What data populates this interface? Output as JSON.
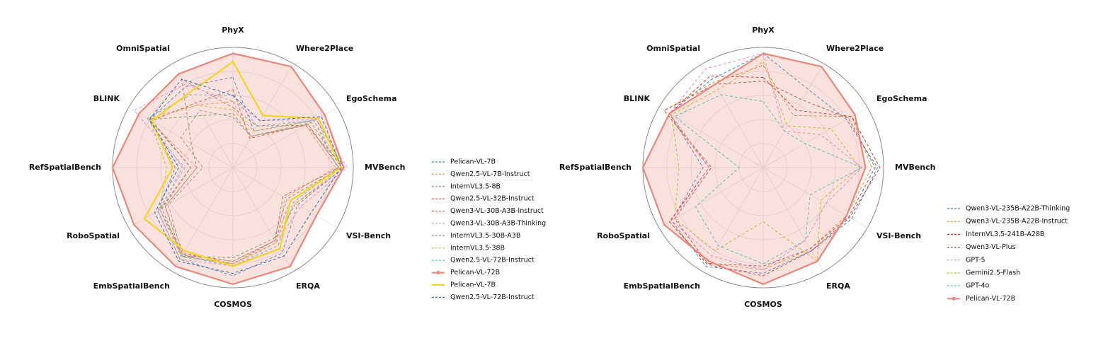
{
  "chart_data": [
    {
      "type": "radar",
      "categories": [
        "PhyX",
        "Where2Place",
        "EgoSchema",
        "MVBench",
        "VSI-Bench",
        "ERQA",
        "COSMOS",
        "EmbSpatialBench",
        "RoboSpatial",
        "RefSpatialBench",
        "BLINK",
        "OmniSpatial"
      ],
      "rlim": [
        0,
        1
      ],
      "rticks": [
        0.2,
        0.4,
        0.6,
        0.8,
        1.0
      ],
      "grid": true,
      "legend": "right",
      "series": [
        {
          "name": "Pelican-VL-7B",
          "color": "#3a8fc7",
          "style": "dashed",
          "values": [
            0.75,
            0.35,
            0.8,
            0.92,
            0.62,
            0.82,
            0.9,
            0.88,
            0.72,
            0.48,
            0.8,
            0.78
          ]
        },
        {
          "name": "Qwen2.5-VL-7B-Instruct",
          "color": "#f0a050",
          "style": "dashed",
          "values": [
            0.55,
            0.3,
            0.7,
            0.85,
            0.5,
            0.72,
            0.8,
            0.82,
            0.65,
            0.3,
            0.82,
            0.6
          ]
        },
        {
          "name": "InternVL3.5-8B",
          "color": "#5aab5a",
          "style": "dashed",
          "values": [
            0.45,
            0.3,
            0.75,
            0.9,
            0.52,
            0.68,
            0.75,
            0.85,
            0.68,
            0.35,
            0.8,
            0.5
          ]
        },
        {
          "name": "Qwen2.5-VL-32B-Instruct",
          "color": "#d9534f",
          "style": "dashed",
          "values": [
            0.65,
            0.28,
            0.72,
            0.88,
            0.48,
            0.7,
            0.78,
            0.83,
            0.7,
            0.35,
            0.78,
            0.62
          ]
        },
        {
          "name": "Qwen3-VL-30B-A3B-Instruct",
          "color": "#b07a6a",
          "style": "dashed",
          "values": [
            0.5,
            0.4,
            0.7,
            0.93,
            0.6,
            0.7,
            0.8,
            0.85,
            0.65,
            0.3,
            0.4,
            0.85
          ]
        },
        {
          "name": "Qwen3-VL-30B-A3B-Thinking",
          "color": "#e89ad6",
          "style": "dashed",
          "values": [
            0.55,
            0.45,
            0.8,
            0.95,
            0.65,
            0.72,
            0.82,
            0.88,
            0.72,
            0.4,
            0.95,
            0.8
          ]
        },
        {
          "name": "InternVL3.5-30B-A3B",
          "color": "#999999",
          "style": "dashed",
          "values": [
            0.42,
            0.3,
            0.72,
            0.88,
            0.55,
            0.7,
            0.78,
            0.84,
            0.62,
            0.25,
            0.5,
            0.55
          ]
        },
        {
          "name": "InternVL3.5-38B",
          "color": "#c8c840",
          "style": "dashed",
          "values": [
            0.48,
            0.35,
            0.78,
            0.9,
            0.6,
            0.72,
            0.8,
            0.86,
            0.7,
            0.55,
            0.8,
            0.6
          ]
        },
        {
          "name": "Qwen2.5-VL-72B-Instruct",
          "color": "#4fc3d9",
          "style": "dashed",
          "values": [
            0.6,
            0.4,
            0.78,
            0.87,
            0.58,
            0.75,
            0.82,
            0.85,
            0.7,
            0.42,
            0.82,
            0.7
          ]
        },
        {
          "name": "Pelican-VL-72B",
          "color": "#e8877a",
          "style": "solid",
          "fill": true,
          "marker": true,
          "values": [
            0.95,
            0.97,
            0.88,
            0.92,
            0.8,
            0.95,
            0.97,
            0.95,
            0.95,
            1.0,
            0.9,
            0.9
          ]
        },
        {
          "name": "Pelican-VL-7B",
          "color": "#f5d327",
          "style": "solid",
          "values": [
            0.88,
            0.5,
            0.82,
            0.9,
            0.55,
            0.78,
            0.82,
            0.8,
            0.85,
            0.5,
            0.78,
            0.72
          ]
        },
        {
          "name": "Qwen2.5-VL-72B-Instruct",
          "color": "#2b6cb0",
          "style": "dashed",
          "values": [
            0.6,
            0.45,
            0.85,
            0.9,
            0.75,
            0.85,
            0.88,
            0.9,
            0.75,
            0.45,
            0.8,
            0.85
          ]
        }
      ]
    },
    {
      "type": "radar",
      "categories": [
        "PhyX",
        "Where2Place",
        "EgoSchema",
        "MVBench",
        "VSI-Bench",
        "ERQA",
        "COSMOS",
        "EmbSpatialBench",
        "RoboSpatial",
        "RefSpatialBench",
        "BLINK",
        "OmniSpatial"
      ],
      "rlim": [
        0,
        1
      ],
      "rticks": [
        0.2,
        0.4,
        0.6,
        0.8,
        1.0
      ],
      "grid": true,
      "legend": "right",
      "series": [
        {
          "name": "Qwen3-VL-235B-A22B-Thinking",
          "color": "#3a7fc7",
          "style": "dashed",
          "values": [
            0.95,
            0.75,
            0.8,
            0.95,
            0.85,
            0.8,
            0.88,
            0.95,
            0.88,
            0.5,
            0.9,
            0.85
          ]
        },
        {
          "name": "Qwen3-VL-235B-A22B-Instruct",
          "color": "#f08a30",
          "style": "dashed",
          "values": [
            0.85,
            0.5,
            0.85,
            0.9,
            0.8,
            0.78,
            0.85,
            0.92,
            0.9,
            0.45,
            0.95,
            0.82
          ]
        },
        {
          "name": "InternVL3.5-241B-A28B",
          "color": "#c0392b",
          "style": "dashed",
          "values": [
            0.75,
            0.55,
            0.85,
            0.97,
            0.83,
            0.8,
            0.9,
            0.93,
            0.9,
            0.45,
            0.9,
            0.88
          ]
        },
        {
          "name": "Qwen3-VL-Plus",
          "color": "#a0524a",
          "style": "dashed",
          "values": [
            0.72,
            0.65,
            0.82,
            0.93,
            0.82,
            0.78,
            0.82,
            0.92,
            0.85,
            0.43,
            0.95,
            0.8
          ]
        },
        {
          "name": "GPT-5",
          "color": "#e88ad6",
          "style": "dashed",
          "values": [
            0.95,
            0.35,
            0.55,
            0.82,
            0.6,
            0.7,
            0.85,
            0.85,
            0.88,
            0.45,
            0.9,
            0.95
          ]
        },
        {
          "name": "Gemini2.5-Flash",
          "color": "#c8c030",
          "style": "dashed",
          "values": [
            0.88,
            0.4,
            0.65,
            0.8,
            0.55,
            0.9,
            0.45,
            0.8,
            0.85,
            0.7,
            0.88,
            0.75
          ]
        },
        {
          "name": "GPT-4o",
          "color": "#3ec8d8",
          "style": "dashed",
          "values": [
            0.55,
            0.35,
            0.4,
            0.82,
            0.45,
            0.7,
            0.8,
            0.75,
            0.65,
            0.2,
            0.85,
            0.7
          ]
        },
        {
          "name": "Pelican-VL-72B",
          "color": "#e8877a",
          "style": "solid",
          "fill": true,
          "marker": true,
          "values": [
            0.95,
            0.97,
            0.88,
            0.85,
            0.8,
            0.9,
            0.97,
            0.9,
            0.95,
            1.0,
            0.9,
            0.8
          ]
        }
      ]
    }
  ]
}
